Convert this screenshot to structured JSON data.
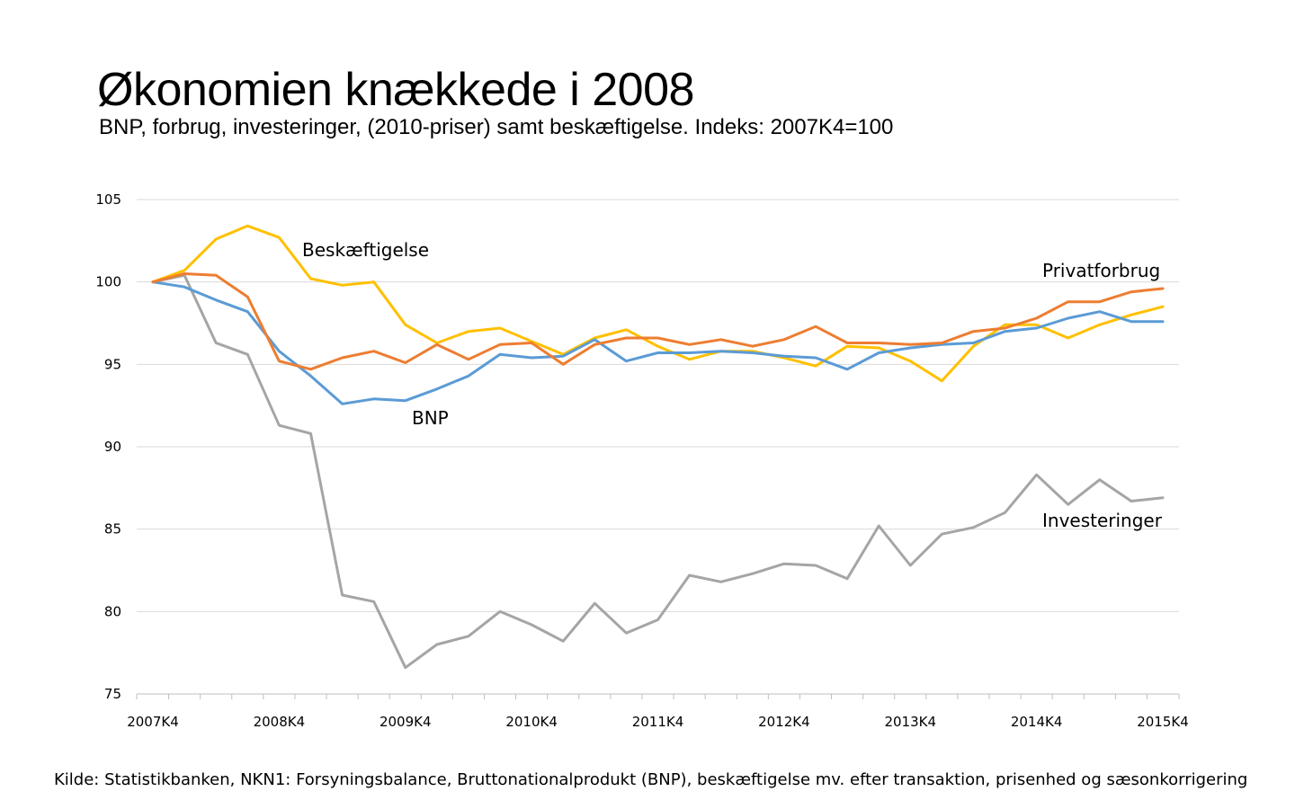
{
  "chart_data": {
    "type": "line",
    "title": "Økonomien knækkede i 2008",
    "subtitle": "BNP, forbrug, investeringer, (2010-priser) samt beskæftigelse. Indeks: 2007K4=100",
    "xlabel": "",
    "ylabel": "",
    "ylim": [
      75,
      105
    ],
    "yticks": [
      "75",
      "80",
      "85",
      "90",
      "95",
      "100",
      "105"
    ],
    "grid": true,
    "x": [
      "2007K4",
      "2008K1",
      "2008K2",
      "2008K3",
      "2008K4",
      "2009K1",
      "2009K2",
      "2009K3",
      "2009K4",
      "2010K1",
      "2010K2",
      "2010K3",
      "2010K4",
      "2011K1",
      "2011K2",
      "2011K3",
      "2011K4",
      "2012K1",
      "2012K2",
      "2012K3",
      "2012K4",
      "2013K1",
      "2013K2",
      "2013K3",
      "2013K4",
      "2014K1",
      "2014K2",
      "2014K3",
      "2014K4",
      "2015K1",
      "2015K2",
      "2015K3",
      "2015K4"
    ],
    "xticks": [
      "2007K4",
      "2008K4",
      "2009K4",
      "2010K4",
      "2011K4",
      "2012K4",
      "2013K4",
      "2014K4",
      "2015K4"
    ],
    "series": [
      {
        "name": "BNP",
        "color": "#5B9BD5",
        "values": [
          100,
          99.7,
          98.9,
          98.2,
          95.8,
          94.3,
          92.6,
          92.9,
          92.8,
          93.5,
          94.3,
          95.6,
          95.4,
          95.5,
          96.5,
          95.2,
          95.7,
          95.7,
          95.8,
          95.7,
          95.5,
          95.4,
          94.7,
          95.7,
          96.0,
          96.2,
          96.3,
          97.0,
          97.2,
          97.8,
          98.2,
          97.6,
          97.6
        ]
      },
      {
        "name": "Privatforbrug",
        "color": "#ED7D31",
        "values": [
          100,
          100.5,
          100.4,
          99.1,
          95.2,
          94.7,
          95.4,
          95.8,
          95.1,
          96.2,
          95.3,
          96.2,
          96.3,
          95.0,
          96.2,
          96.6,
          96.6,
          96.2,
          96.5,
          96.1,
          96.5,
          97.3,
          96.3,
          96.3,
          96.2,
          96.3,
          97.0,
          97.2,
          97.8,
          98.8,
          98.8,
          99.4,
          99.6
        ]
      },
      {
        "name": "Beskæftigelse",
        "color": "#FFC000",
        "values": [
          100,
          100.7,
          102.6,
          103.4,
          102.7,
          100.2,
          99.8,
          100.0,
          97.4,
          96.3,
          97.0,
          97.2,
          96.4,
          95.6,
          96.6,
          97.1,
          96.1,
          95.3,
          95.8,
          95.8,
          95.4,
          94.9,
          96.1,
          96.0,
          95.2,
          94.0,
          96.1,
          97.4,
          97.4,
          96.6,
          97.4,
          98.0,
          98.5
        ]
      },
      {
        "name": "Investeringer",
        "color": "#A5A5A5",
        "values": [
          100,
          100.4,
          96.3,
          95.6,
          91.3,
          90.8,
          81.0,
          80.6,
          76.6,
          78.0,
          78.5,
          80.0,
          79.2,
          78.2,
          80.5,
          78.7,
          79.5,
          82.2,
          81.8,
          82.3,
          82.9,
          82.8,
          82.0,
          85.2,
          82.8,
          84.7,
          85.1,
          86.0,
          88.3,
          86.5,
          88.0,
          86.7,
          86.9
        ]
      }
    ]
  },
  "source": "Kilde: Statistikbanken, NKN1: Forsyningsbalance, Bruttonationalprodukt (BNP), beskæftigelse mv. efter transaktion, prisenhed og sæsonkorrigering"
}
